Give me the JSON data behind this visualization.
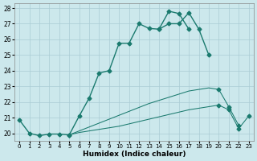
{
  "xlabel": "Humidex (Indice chaleur)",
  "x_ticks": [
    0,
    1,
    2,
    3,
    4,
    5,
    6,
    7,
    8,
    9,
    10,
    11,
    12,
    13,
    14,
    15,
    16,
    17,
    18,
    19,
    20,
    21,
    22,
    23
  ],
  "xlim": [
    -0.5,
    23.5
  ],
  "ylim": [
    19.5,
    28.3
  ],
  "y_ticks": [
    20,
    21,
    22,
    23,
    24,
    25,
    26,
    27,
    28
  ],
  "bg_color": "#cce8ec",
  "grid_color": "#aaccd4",
  "line_color": "#1a7a6e",
  "line1": {
    "x": [
      0,
      1,
      2,
      3,
      4,
      5
    ],
    "y": [
      20.85,
      20.0,
      19.85,
      19.95,
      19.95,
      19.9
    ]
  },
  "line2": {
    "x": [
      5,
      6,
      7,
      8,
      9,
      10,
      11,
      12,
      13,
      14,
      15,
      16,
      17,
      18,
      19
    ],
    "y": [
      19.9,
      21.1,
      22.25,
      23.85,
      24.0,
      25.75,
      25.75,
      27.0,
      26.7,
      26.65,
      27.0,
      27.0,
      27.7,
      26.65,
      25.0
    ]
  },
  "line3": {
    "x": [
      14,
      15,
      16,
      17
    ],
    "y": [
      26.65,
      27.8,
      27.65,
      26.65
    ]
  },
  "line4": {
    "x": [
      5,
      6,
      7,
      8,
      9,
      10,
      11,
      12,
      13,
      14,
      15,
      16,
      17,
      18,
      19,
      20,
      21,
      22,
      23
    ],
    "y": [
      19.9,
      20.05,
      20.15,
      20.25,
      20.35,
      20.45,
      20.6,
      20.75,
      20.9,
      21.05,
      21.2,
      21.35,
      21.5,
      21.6,
      21.7,
      21.8,
      21.5,
      20.3,
      21.1
    ]
  },
  "line5": {
    "x": [
      5,
      6,
      7,
      8,
      9,
      10,
      11,
      12,
      13,
      14,
      15,
      16,
      17,
      18,
      19,
      20,
      21,
      22
    ],
    "y": [
      19.9,
      20.15,
      20.4,
      20.65,
      20.9,
      21.15,
      21.4,
      21.65,
      21.9,
      22.1,
      22.3,
      22.5,
      22.7,
      22.8,
      22.9,
      22.8,
      21.7,
      20.5
    ]
  },
  "markers_line4": {
    "x": [
      20,
      21,
      22,
      23
    ],
    "y": [
      21.8,
      21.5,
      20.3,
      21.1
    ]
  },
  "markers_line5": {
    "x": [
      20,
      21,
      22
    ],
    "y": [
      22.8,
      21.7,
      20.5
    ]
  }
}
